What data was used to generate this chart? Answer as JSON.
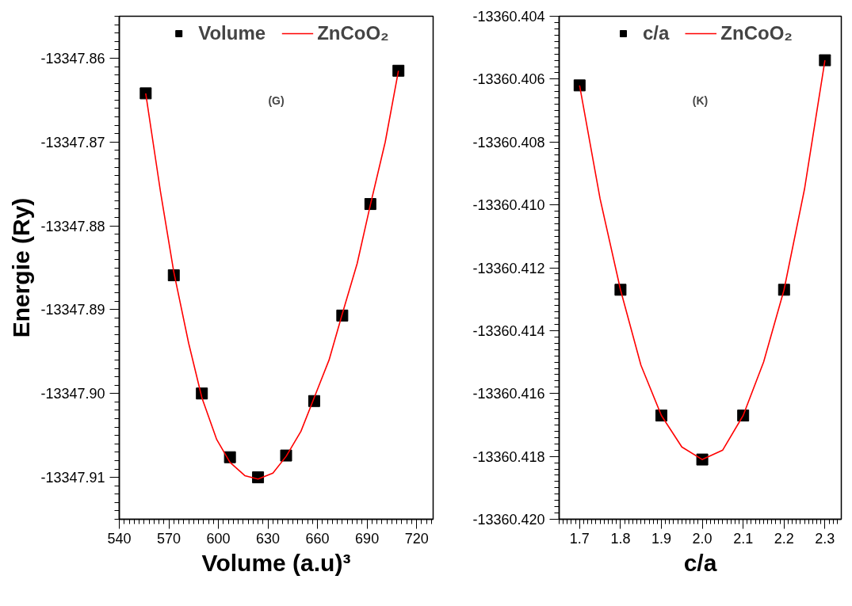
{
  "chart_data": [
    {
      "type": "scatter",
      "xlabel": "Volume (a.u)³",
      "ylabel": "Energie (Ry)",
      "annotations": [
        "(G)"
      ],
      "xlim": [
        540,
        730
      ],
      "xticks": [
        540,
        570,
        600,
        630,
        660,
        690,
        720
      ],
      "ylim": [
        -13347.915,
        -13347.855
      ],
      "yticks": [
        -13347.86,
        -13347.87,
        -13347.88,
        -13347.89,
        {
          "value": -13347.9,
          "label": "-13347.90"
        },
        -13347.91
      ],
      "grid": false,
      "legend": "top",
      "series": [
        {
          "name": "Volume",
          "type": "scatter",
          "marker": "square",
          "color": "#000000",
          "x": [
            556,
            573,
            590,
            607,
            624,
            641,
            658,
            675,
            692,
            709
          ],
          "values": [
            -13347.8642,
            -13347.8859,
            -13347.9,
            -13347.9076,
            -13347.91,
            -13347.9074,
            -13347.9009,
            -13347.8907,
            -13347.8774,
            -13347.8615
          ]
        },
        {
          "name": "ZnCoO₂",
          "type": "line",
          "line_style": "solid",
          "color": "#ff0000",
          "x": [
            556,
            565,
            573,
            582,
            590,
            599,
            607,
            616,
            624,
            633,
            641,
            650,
            658,
            667,
            675,
            684,
            692,
            701,
            709
          ],
          "values": [
            -13347.8642,
            -13347.876,
            -13347.8855,
            -13347.894,
            -13347.9005,
            -13347.9055,
            -13347.9082,
            -13347.9098,
            -13347.9102,
            -13347.9095,
            -13347.9075,
            -13347.9045,
            -13347.9005,
            -13347.896,
            -13347.8905,
            -13347.8845,
            -13347.8775,
            -13347.87,
            -13347.8615
          ]
        }
      ]
    },
    {
      "type": "scatter",
      "xlabel": "c/a",
      "annotations": [
        "(K)"
      ],
      "xlim": [
        1.65,
        2.34
      ],
      "xticks": [
        1.7,
        1.8,
        1.9,
        {
          "value": 2.0,
          "label": "2.0"
        },
        2.1,
        2.2,
        2.3
      ],
      "ylim": [
        -13360.42,
        -13360.404
      ],
      "yticks": [
        {
          "value": -13360.404,
          "label": "-13360.404"
        },
        {
          "value": -13360.406,
          "label": "-13360.406"
        },
        {
          "value": -13360.408,
          "label": "-13360.408"
        },
        {
          "value": -13360.41,
          "label": "-13360.410"
        },
        {
          "value": -13360.412,
          "label": "-13360.412"
        },
        {
          "value": -13360.414,
          "label": "-13360.414"
        },
        {
          "value": -13360.416,
          "label": "-13360.416"
        },
        {
          "value": -13360.418,
          "label": "-13360.418"
        },
        {
          "value": -13360.42,
          "label": "-13360.420"
        }
      ],
      "grid": false,
      "legend": "top",
      "series": [
        {
          "name": "c/a",
          "type": "scatter",
          "marker": "square",
          "color": "#000000",
          "x": [
            1.7,
            1.8,
            1.9,
            2.0,
            2.1,
            2.2,
            2.3
          ],
          "values": [
            -13360.4062,
            -13360.4127,
            -13360.4167,
            -13360.4181,
            -13360.4167,
            -13360.4127,
            -13360.4054
          ]
        },
        {
          "name": "ZnCoO₂",
          "type": "line",
          "line_style": "solid",
          "color": "#ff0000",
          "x": [
            1.7,
            1.75,
            1.8,
            1.85,
            1.9,
            1.95,
            2.0,
            2.05,
            2.1,
            2.15,
            2.2,
            2.25,
            2.3
          ],
          "values": [
            -13360.4062,
            -13360.4098,
            -13360.4127,
            -13360.4151,
            -13360.4167,
            -13360.4177,
            -13360.4181,
            -13360.4178,
            -13360.4167,
            -13360.415,
            -13360.4127,
            -13360.4095,
            -13360.4054
          ]
        }
      ]
    }
  ]
}
